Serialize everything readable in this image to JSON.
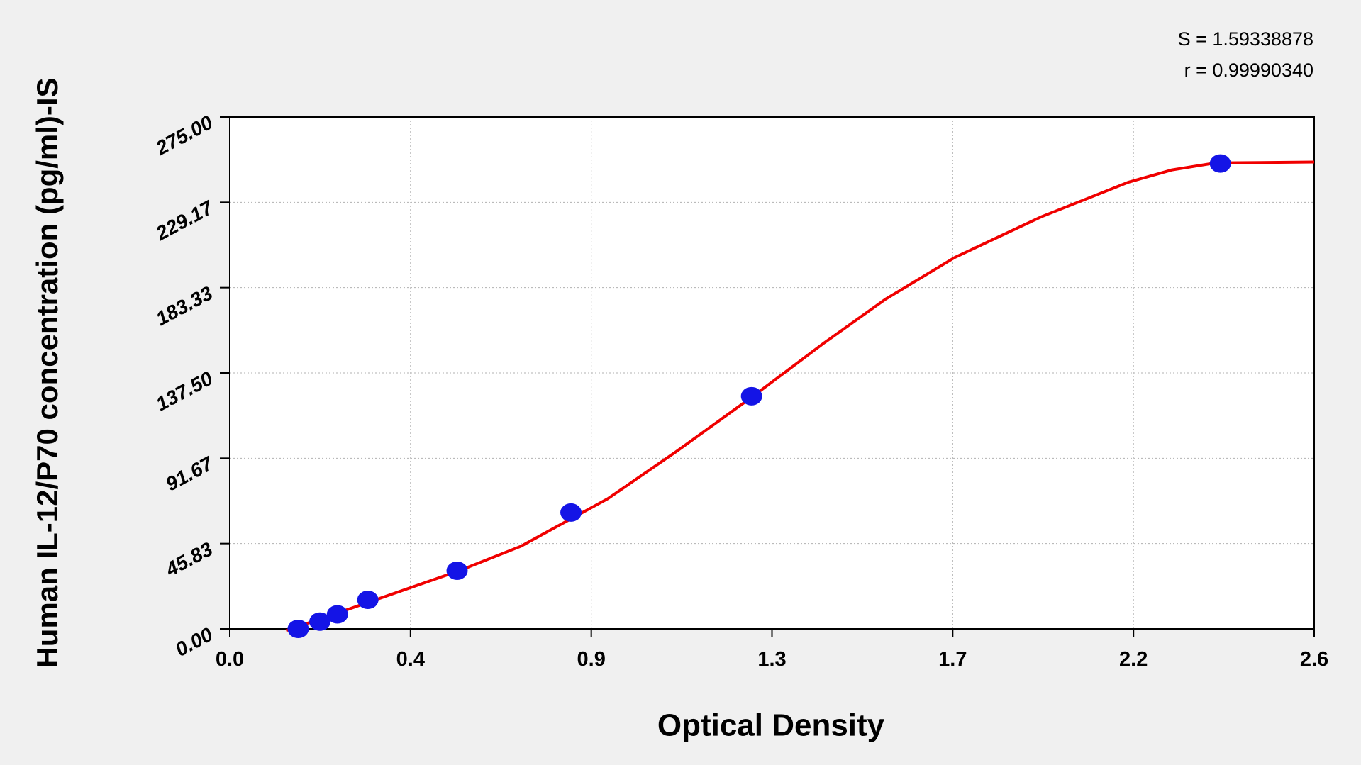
{
  "chart_data": {
    "type": "scatter",
    "xlabel": "Optical Density",
    "ylabel": "Human IL-12/P70 concentration (pg/ml)-IS",
    "annotations": [
      "S = 1.59338878",
      "r = 0.99990340"
    ],
    "xlim": [
      0,
      2.6
    ],
    "ylim": [
      0,
      275
    ],
    "xticks": [
      {
        "value": 0,
        "label": "0.0"
      },
      {
        "value": 0.4333,
        "label": "0.4"
      },
      {
        "value": 0.8667,
        "label": "0.9"
      },
      {
        "value": 1.3,
        "label": "1.3"
      },
      {
        "value": 1.7333,
        "label": "1.7"
      },
      {
        "value": 2.1667,
        "label": "2.2"
      },
      {
        "value": 2.6,
        "label": "2.6"
      }
    ],
    "yticks": [
      {
        "value": 0,
        "label": "0.00"
      },
      {
        "value": 45.8333,
        "label": "45.83"
      },
      {
        "value": 91.6667,
        "label": "91.67"
      },
      {
        "value": 137.5,
        "label": "137.50"
      },
      {
        "value": 183.3333,
        "label": "183.33"
      },
      {
        "value": 229.1667,
        "label": "229.17"
      },
      {
        "value": 275,
        "label": "275.00"
      }
    ],
    "grid": true,
    "points": {
      "color": "#1414e6",
      "x": [
        0.164,
        0.216,
        0.258,
        0.331,
        0.545,
        0.818,
        1.251,
        2.375
      ],
      "values": [
        0,
        3.9,
        7.8,
        15.6,
        31.25,
        62.5,
        125,
        250
      ]
    },
    "curve": {
      "color": "#f00000",
      "x": [
        0.135,
        0.281,
        0.545,
        0.697,
        0.906,
        1.072,
        1.251,
        1.426,
        1.572,
        1.738,
        1.946,
        2.155,
        2.259,
        2.363,
        2.6
      ],
      "values": [
        -0.9,
        10.3,
        30.8,
        44.3,
        69.9,
        95.5,
        124.4,
        153.8,
        177.1,
        199.5,
        221.4,
        240,
        246.6,
        250.3,
        250.8
      ]
    }
  }
}
